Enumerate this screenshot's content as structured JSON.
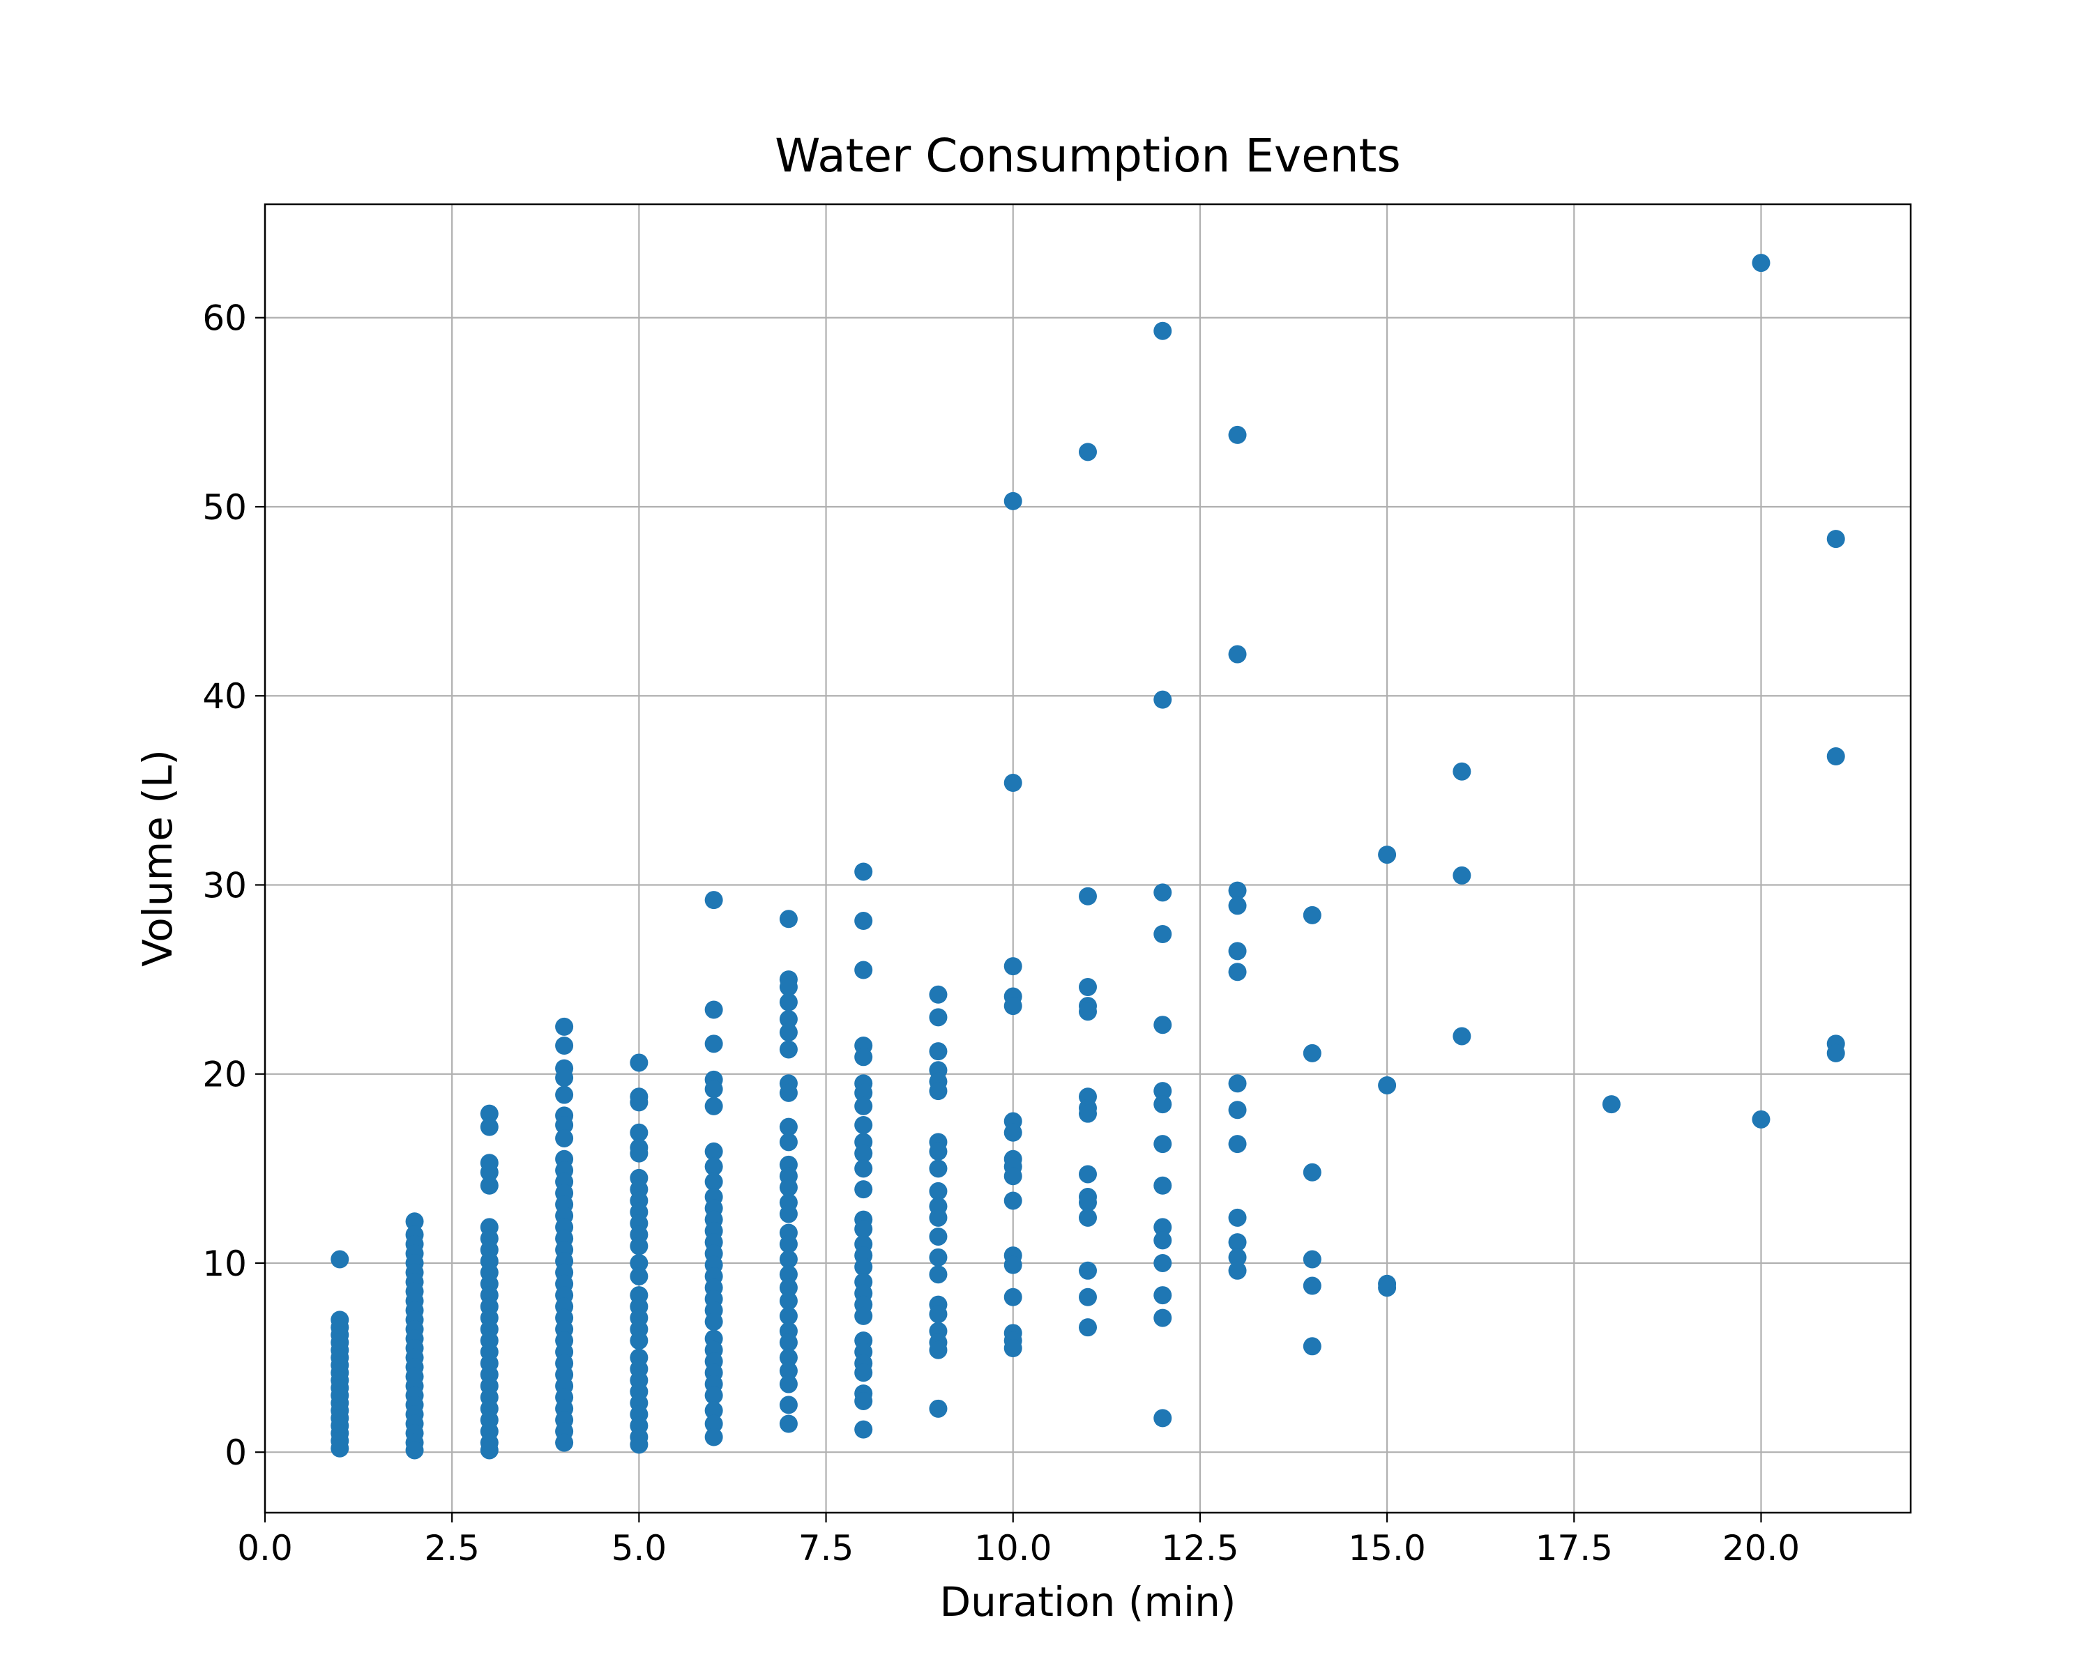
{
  "chart_data": {
    "type": "scatter",
    "title": "Water Consumption Events",
    "xlabel": "Duration (min)",
    "ylabel": "Volume (L)",
    "xlim": [
      0,
      22
    ],
    "ylim": [
      -3.2,
      66
    ],
    "xticks": [
      0,
      2.5,
      5,
      7.5,
      10,
      12.5,
      15,
      17.5,
      20
    ],
    "xtick_labels": [
      "0.0",
      "2.5",
      "5.0",
      "7.5",
      "10.0",
      "12.5",
      "15.0",
      "17.5",
      "20.0"
    ],
    "yticks": [
      0,
      10,
      20,
      30,
      40,
      50,
      60
    ],
    "ytick_labels": [
      "0",
      "10",
      "20",
      "30",
      "40",
      "50",
      "60"
    ],
    "grid": true,
    "color": "#1f77b4",
    "points": [
      {
        "x": 1,
        "y": 10.2
      },
      {
        "x": 1,
        "y": 7.0
      },
      {
        "x": 1,
        "y": 6.6
      },
      {
        "x": 1,
        "y": 6.2
      },
      {
        "x": 1,
        "y": 5.8
      },
      {
        "x": 1,
        "y": 5.4
      },
      {
        "x": 1,
        "y": 5.0
      },
      {
        "x": 1,
        "y": 4.6
      },
      {
        "x": 1,
        "y": 4.2
      },
      {
        "x": 1,
        "y": 3.8
      },
      {
        "x": 1,
        "y": 3.4
      },
      {
        "x": 1,
        "y": 3.0
      },
      {
        "x": 1,
        "y": 2.6
      },
      {
        "x": 1,
        "y": 2.2
      },
      {
        "x": 1,
        "y": 1.8
      },
      {
        "x": 1,
        "y": 1.4
      },
      {
        "x": 1,
        "y": 1.0
      },
      {
        "x": 1,
        "y": 0.6
      },
      {
        "x": 1,
        "y": 0.2
      },
      {
        "x": 2,
        "y": 12.2
      },
      {
        "x": 2,
        "y": 11.5
      },
      {
        "x": 2,
        "y": 11.0
      },
      {
        "x": 2,
        "y": 10.5
      },
      {
        "x": 2,
        "y": 10.0
      },
      {
        "x": 2,
        "y": 9.5
      },
      {
        "x": 2,
        "y": 9.0
      },
      {
        "x": 2,
        "y": 8.5
      },
      {
        "x": 2,
        "y": 8.0
      },
      {
        "x": 2,
        "y": 7.5
      },
      {
        "x": 2,
        "y": 7.0
      },
      {
        "x": 2,
        "y": 6.5
      },
      {
        "x": 2,
        "y": 6.0
      },
      {
        "x": 2,
        "y": 5.5
      },
      {
        "x": 2,
        "y": 5.0
      },
      {
        "x": 2,
        "y": 4.5
      },
      {
        "x": 2,
        "y": 4.0
      },
      {
        "x": 2,
        "y": 3.5
      },
      {
        "x": 2,
        "y": 3.0
      },
      {
        "x": 2,
        "y": 2.5
      },
      {
        "x": 2,
        "y": 2.0
      },
      {
        "x": 2,
        "y": 1.5
      },
      {
        "x": 2,
        "y": 1.0
      },
      {
        "x": 2,
        "y": 0.5
      },
      {
        "x": 2,
        "y": 0.1
      },
      {
        "x": 3,
        "y": 17.9
      },
      {
        "x": 3,
        "y": 17.2
      },
      {
        "x": 3,
        "y": 15.3
      },
      {
        "x": 3,
        "y": 14.8
      },
      {
        "x": 3,
        "y": 14.1
      },
      {
        "x": 3,
        "y": 11.9
      },
      {
        "x": 3,
        "y": 11.3
      },
      {
        "x": 3,
        "y": 10.7
      },
      {
        "x": 3,
        "y": 10.1
      },
      {
        "x": 3,
        "y": 9.5
      },
      {
        "x": 3,
        "y": 8.9
      },
      {
        "x": 3,
        "y": 8.3
      },
      {
        "x": 3,
        "y": 7.7
      },
      {
        "x": 3,
        "y": 7.1
      },
      {
        "x": 3,
        "y": 6.5
      },
      {
        "x": 3,
        "y": 5.9
      },
      {
        "x": 3,
        "y": 5.3
      },
      {
        "x": 3,
        "y": 4.7
      },
      {
        "x": 3,
        "y": 4.1
      },
      {
        "x": 3,
        "y": 3.5
      },
      {
        "x": 3,
        "y": 2.9
      },
      {
        "x": 3,
        "y": 2.3
      },
      {
        "x": 3,
        "y": 1.7
      },
      {
        "x": 3,
        "y": 1.1
      },
      {
        "x": 3,
        "y": 0.5
      },
      {
        "x": 3,
        "y": 0.1
      },
      {
        "x": 4,
        "y": 22.5
      },
      {
        "x": 4,
        "y": 21.5
      },
      {
        "x": 4,
        "y": 20.3
      },
      {
        "x": 4,
        "y": 19.8
      },
      {
        "x": 4,
        "y": 18.9
      },
      {
        "x": 4,
        "y": 17.8
      },
      {
        "x": 4,
        "y": 17.3
      },
      {
        "x": 4,
        "y": 16.6
      },
      {
        "x": 4,
        "y": 15.5
      },
      {
        "x": 4,
        "y": 14.9
      },
      {
        "x": 4,
        "y": 14.3
      },
      {
        "x": 4,
        "y": 13.7
      },
      {
        "x": 4,
        "y": 13.1
      },
      {
        "x": 4,
        "y": 12.5
      },
      {
        "x": 4,
        "y": 11.9
      },
      {
        "x": 4,
        "y": 11.3
      },
      {
        "x": 4,
        "y": 10.7
      },
      {
        "x": 4,
        "y": 10.1
      },
      {
        "x": 4,
        "y": 9.5
      },
      {
        "x": 4,
        "y": 8.9
      },
      {
        "x": 4,
        "y": 8.3
      },
      {
        "x": 4,
        "y": 7.7
      },
      {
        "x": 4,
        "y": 7.1
      },
      {
        "x": 4,
        "y": 6.5
      },
      {
        "x": 4,
        "y": 5.9
      },
      {
        "x": 4,
        "y": 5.3
      },
      {
        "x": 4,
        "y": 4.7
      },
      {
        "x": 4,
        "y": 4.1
      },
      {
        "x": 4,
        "y": 3.5
      },
      {
        "x": 4,
        "y": 2.9
      },
      {
        "x": 4,
        "y": 2.3
      },
      {
        "x": 4,
        "y": 1.7
      },
      {
        "x": 4,
        "y": 1.1
      },
      {
        "x": 4,
        "y": 0.5
      },
      {
        "x": 5,
        "y": 20.6
      },
      {
        "x": 5,
        "y": 18.8
      },
      {
        "x": 5,
        "y": 18.5
      },
      {
        "x": 5,
        "y": 16.9
      },
      {
        "x": 5,
        "y": 16.1
      },
      {
        "x": 5,
        "y": 15.8
      },
      {
        "x": 5,
        "y": 14.5
      },
      {
        "x": 5,
        "y": 13.9
      },
      {
        "x": 5,
        "y": 13.3
      },
      {
        "x": 5,
        "y": 12.7
      },
      {
        "x": 5,
        "y": 12.1
      },
      {
        "x": 5,
        "y": 11.5
      },
      {
        "x": 5,
        "y": 10.9
      },
      {
        "x": 5,
        "y": 10.0
      },
      {
        "x": 5,
        "y": 9.3
      },
      {
        "x": 5,
        "y": 8.3
      },
      {
        "x": 5,
        "y": 7.7
      },
      {
        "x": 5,
        "y": 7.1
      },
      {
        "x": 5,
        "y": 6.5
      },
      {
        "x": 5,
        "y": 5.9
      },
      {
        "x": 5,
        "y": 5.0
      },
      {
        "x": 5,
        "y": 4.4
      },
      {
        "x": 5,
        "y": 3.8
      },
      {
        "x": 5,
        "y": 3.2
      },
      {
        "x": 5,
        "y": 2.6
      },
      {
        "x": 5,
        "y": 2.0
      },
      {
        "x": 5,
        "y": 1.4
      },
      {
        "x": 5,
        "y": 0.8
      },
      {
        "x": 5,
        "y": 0.4
      },
      {
        "x": 6,
        "y": 29.2
      },
      {
        "x": 6,
        "y": 23.4
      },
      {
        "x": 6,
        "y": 21.6
      },
      {
        "x": 6,
        "y": 19.7
      },
      {
        "x": 6,
        "y": 19.2
      },
      {
        "x": 6,
        "y": 18.3
      },
      {
        "x": 6,
        "y": 15.9
      },
      {
        "x": 6,
        "y": 15.1
      },
      {
        "x": 6,
        "y": 14.3
      },
      {
        "x": 6,
        "y": 13.5
      },
      {
        "x": 6,
        "y": 12.9
      },
      {
        "x": 6,
        "y": 12.3
      },
      {
        "x": 6,
        "y": 11.7
      },
      {
        "x": 6,
        "y": 11.1
      },
      {
        "x": 6,
        "y": 10.5
      },
      {
        "x": 6,
        "y": 9.9
      },
      {
        "x": 6,
        "y": 9.3
      },
      {
        "x": 6,
        "y": 8.7
      },
      {
        "x": 6,
        "y": 8.1
      },
      {
        "x": 6,
        "y": 7.5
      },
      {
        "x": 6,
        "y": 6.9
      },
      {
        "x": 6,
        "y": 6.0
      },
      {
        "x": 6,
        "y": 5.4
      },
      {
        "x": 6,
        "y": 4.8
      },
      {
        "x": 6,
        "y": 4.2
      },
      {
        "x": 6,
        "y": 3.6
      },
      {
        "x": 6,
        "y": 3.0
      },
      {
        "x": 6,
        "y": 2.2
      },
      {
        "x": 6,
        "y": 1.5
      },
      {
        "x": 6,
        "y": 0.8
      },
      {
        "x": 7,
        "y": 28.2
      },
      {
        "x": 7,
        "y": 25.0
      },
      {
        "x": 7,
        "y": 24.6
      },
      {
        "x": 7,
        "y": 23.8
      },
      {
        "x": 7,
        "y": 22.9
      },
      {
        "x": 7,
        "y": 22.2
      },
      {
        "x": 7,
        "y": 21.3
      },
      {
        "x": 7,
        "y": 19.5
      },
      {
        "x": 7,
        "y": 19.0
      },
      {
        "x": 7,
        "y": 17.2
      },
      {
        "x": 7,
        "y": 16.4
      },
      {
        "x": 7,
        "y": 15.2
      },
      {
        "x": 7,
        "y": 14.6
      },
      {
        "x": 7,
        "y": 14.0
      },
      {
        "x": 7,
        "y": 13.2
      },
      {
        "x": 7,
        "y": 12.6
      },
      {
        "x": 7,
        "y": 11.6
      },
      {
        "x": 7,
        "y": 11.0
      },
      {
        "x": 7,
        "y": 10.2
      },
      {
        "x": 7,
        "y": 9.4
      },
      {
        "x": 7,
        "y": 8.7
      },
      {
        "x": 7,
        "y": 8.0
      },
      {
        "x": 7,
        "y": 7.2
      },
      {
        "x": 7,
        "y": 6.4
      },
      {
        "x": 7,
        "y": 5.8
      },
      {
        "x": 7,
        "y": 5.0
      },
      {
        "x": 7,
        "y": 4.3
      },
      {
        "x": 7,
        "y": 3.6
      },
      {
        "x": 7,
        "y": 2.5
      },
      {
        "x": 7,
        "y": 1.5
      },
      {
        "x": 8,
        "y": 30.7
      },
      {
        "x": 8,
        "y": 28.1
      },
      {
        "x": 8,
        "y": 25.5
      },
      {
        "x": 8,
        "y": 21.5
      },
      {
        "x": 8,
        "y": 20.9
      },
      {
        "x": 8,
        "y": 19.5
      },
      {
        "x": 8,
        "y": 19.0
      },
      {
        "x": 8,
        "y": 18.3
      },
      {
        "x": 8,
        "y": 17.3
      },
      {
        "x": 8,
        "y": 16.4
      },
      {
        "x": 8,
        "y": 15.8
      },
      {
        "x": 8,
        "y": 15.0
      },
      {
        "x": 8,
        "y": 13.9
      },
      {
        "x": 8,
        "y": 12.3
      },
      {
        "x": 8,
        "y": 11.8
      },
      {
        "x": 8,
        "y": 11.0
      },
      {
        "x": 8,
        "y": 10.4
      },
      {
        "x": 8,
        "y": 9.8
      },
      {
        "x": 8,
        "y": 9.0
      },
      {
        "x": 8,
        "y": 8.4
      },
      {
        "x": 8,
        "y": 7.8
      },
      {
        "x": 8,
        "y": 7.2
      },
      {
        "x": 8,
        "y": 5.9
      },
      {
        "x": 8,
        "y": 5.3
      },
      {
        "x": 8,
        "y": 4.7
      },
      {
        "x": 8,
        "y": 4.2
      },
      {
        "x": 8,
        "y": 3.1
      },
      {
        "x": 8,
        "y": 2.7
      },
      {
        "x": 8,
        "y": 1.2
      },
      {
        "x": 9,
        "y": 24.2
      },
      {
        "x": 9,
        "y": 23.0
      },
      {
        "x": 9,
        "y": 21.2
      },
      {
        "x": 9,
        "y": 20.2
      },
      {
        "x": 9,
        "y": 19.6
      },
      {
        "x": 9,
        "y": 19.1
      },
      {
        "x": 9,
        "y": 16.4
      },
      {
        "x": 9,
        "y": 15.9
      },
      {
        "x": 9,
        "y": 15.0
      },
      {
        "x": 9,
        "y": 13.8
      },
      {
        "x": 9,
        "y": 13.0
      },
      {
        "x": 9,
        "y": 12.4
      },
      {
        "x": 9,
        "y": 11.4
      },
      {
        "x": 9,
        "y": 10.3
      },
      {
        "x": 9,
        "y": 9.4
      },
      {
        "x": 9,
        "y": 7.8
      },
      {
        "x": 9,
        "y": 7.3
      },
      {
        "x": 9,
        "y": 6.4
      },
      {
        "x": 9,
        "y": 5.8
      },
      {
        "x": 9,
        "y": 5.4
      },
      {
        "x": 9,
        "y": 2.3
      },
      {
        "x": 10,
        "y": 50.3
      },
      {
        "x": 10,
        "y": 35.4
      },
      {
        "x": 10,
        "y": 25.7
      },
      {
        "x": 10,
        "y": 24.1
      },
      {
        "x": 10,
        "y": 23.6
      },
      {
        "x": 10,
        "y": 17.5
      },
      {
        "x": 10,
        "y": 16.9
      },
      {
        "x": 10,
        "y": 15.5
      },
      {
        "x": 10,
        "y": 15.1
      },
      {
        "x": 10,
        "y": 14.6
      },
      {
        "x": 10,
        "y": 13.3
      },
      {
        "x": 10,
        "y": 10.4
      },
      {
        "x": 10,
        "y": 9.9
      },
      {
        "x": 10,
        "y": 8.2
      },
      {
        "x": 10,
        "y": 6.3
      },
      {
        "x": 10,
        "y": 5.9
      },
      {
        "x": 10,
        "y": 5.5
      },
      {
        "x": 11,
        "y": 52.9
      },
      {
        "x": 11,
        "y": 29.4
      },
      {
        "x": 11,
        "y": 24.6
      },
      {
        "x": 11,
        "y": 23.6
      },
      {
        "x": 11,
        "y": 23.3
      },
      {
        "x": 11,
        "y": 18.8
      },
      {
        "x": 11,
        "y": 18.2
      },
      {
        "x": 11,
        "y": 17.9
      },
      {
        "x": 11,
        "y": 14.7
      },
      {
        "x": 11,
        "y": 13.5
      },
      {
        "x": 11,
        "y": 13.2
      },
      {
        "x": 11,
        "y": 12.4
      },
      {
        "x": 11,
        "y": 9.6
      },
      {
        "x": 11,
        "y": 8.2
      },
      {
        "x": 11,
        "y": 6.6
      },
      {
        "x": 12,
        "y": 59.3
      },
      {
        "x": 12,
        "y": 39.8
      },
      {
        "x": 12,
        "y": 29.6
      },
      {
        "x": 12,
        "y": 27.4
      },
      {
        "x": 12,
        "y": 22.6
      },
      {
        "x": 12,
        "y": 19.1
      },
      {
        "x": 12,
        "y": 18.4
      },
      {
        "x": 12,
        "y": 16.3
      },
      {
        "x": 12,
        "y": 14.1
      },
      {
        "x": 12,
        "y": 11.9
      },
      {
        "x": 12,
        "y": 11.2
      },
      {
        "x": 12,
        "y": 10.0
      },
      {
        "x": 12,
        "y": 8.3
      },
      {
        "x": 12,
        "y": 7.1
      },
      {
        "x": 12,
        "y": 1.8
      },
      {
        "x": 13,
        "y": 53.8
      },
      {
        "x": 13,
        "y": 42.2
      },
      {
        "x": 13,
        "y": 29.7
      },
      {
        "x": 13,
        "y": 28.9
      },
      {
        "x": 13,
        "y": 26.5
      },
      {
        "x": 13,
        "y": 25.4
      },
      {
        "x": 13,
        "y": 19.5
      },
      {
        "x": 13,
        "y": 18.1
      },
      {
        "x": 13,
        "y": 16.3
      },
      {
        "x": 13,
        "y": 12.4
      },
      {
        "x": 13,
        "y": 11.1
      },
      {
        "x": 13,
        "y": 10.3
      },
      {
        "x": 13,
        "y": 9.6
      },
      {
        "x": 14,
        "y": 28.4
      },
      {
        "x": 14,
        "y": 21.1
      },
      {
        "x": 14,
        "y": 14.8
      },
      {
        "x": 14,
        "y": 10.2
      },
      {
        "x": 14,
        "y": 8.8
      },
      {
        "x": 14,
        "y": 5.6
      },
      {
        "x": 15,
        "y": 31.6
      },
      {
        "x": 15,
        "y": 19.4
      },
      {
        "x": 15,
        "y": 8.9
      },
      {
        "x": 15,
        "y": 8.7
      },
      {
        "x": 16,
        "y": 36.0
      },
      {
        "x": 16,
        "y": 30.5
      },
      {
        "x": 16,
        "y": 22.0
      },
      {
        "x": 18,
        "y": 18.4
      },
      {
        "x": 20,
        "y": 62.9
      },
      {
        "x": 20,
        "y": 17.6
      },
      {
        "x": 21,
        "y": 48.3
      },
      {
        "x": 21,
        "y": 36.8
      },
      {
        "x": 21,
        "y": 21.6
      },
      {
        "x": 21,
        "y": 21.1
      }
    ]
  }
}
